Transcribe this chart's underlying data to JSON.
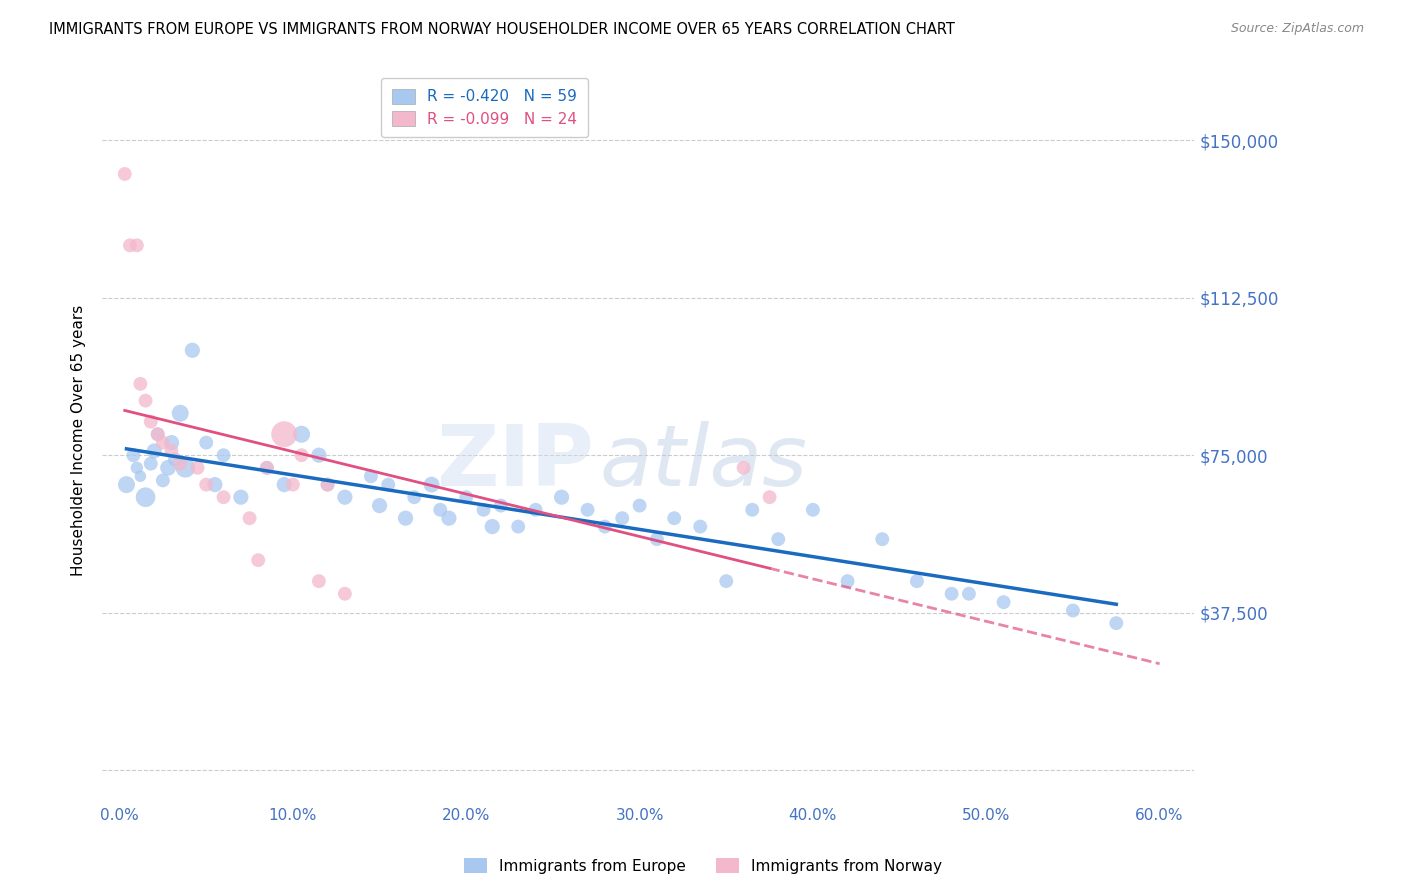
{
  "title": "IMMIGRANTS FROM EUROPE VS IMMIGRANTS FROM NORWAY HOUSEHOLDER INCOME OVER 65 YEARS CORRELATION CHART",
  "source": "Source: ZipAtlas.com",
  "ylabel": "Householder Income Over 65 years",
  "xlabel_ticks": [
    "0.0%",
    "10.0%",
    "20.0%",
    "30.0%",
    "40.0%",
    "50.0%",
    "60.0%"
  ],
  "xlabel_vals": [
    0.0,
    10.0,
    20.0,
    30.0,
    40.0,
    50.0,
    60.0
  ],
  "yticks_vals": [
    0,
    37500,
    75000,
    112500,
    150000
  ],
  "yticks_labels": [
    "",
    "$37,500",
    "$75,000",
    "$112,500",
    "$150,000"
  ],
  "xlim": [
    -1.0,
    62.0
  ],
  "ylim": [
    -8000,
    165000
  ],
  "watermark_zip": "ZIP",
  "watermark_atlas": "atlas",
  "legend_europe": "Immigrants from Europe",
  "legend_norway": "Immigrants from Norway",
  "R_europe": -0.42,
  "N_europe": 59,
  "R_norway": -0.099,
  "N_norway": 24,
  "color_europe": "#a8c8f0",
  "color_norway": "#f4b8cc",
  "color_europe_line": "#1a6bbf",
  "color_norway_line": "#e05080",
  "color_axis_labels": "#4472C4",
  "europe_x": [
    0.4,
    0.8,
    1.0,
    1.2,
    1.5,
    1.8,
    2.0,
    2.2,
    2.5,
    2.8,
    3.0,
    3.2,
    3.5,
    3.8,
    4.2,
    5.0,
    5.5,
    6.0,
    7.0,
    8.5,
    9.5,
    10.5,
    11.5,
    12.0,
    13.0,
    14.5,
    15.0,
    15.5,
    16.5,
    17.0,
    18.0,
    18.5,
    19.0,
    20.0,
    21.0,
    21.5,
    22.0,
    23.0,
    24.0,
    25.5,
    27.0,
    28.0,
    29.0,
    30.0,
    31.0,
    32.0,
    33.5,
    35.0,
    36.5,
    38.0,
    40.0,
    42.0,
    44.0,
    46.0,
    48.0,
    49.0,
    51.0,
    55.0,
    57.5
  ],
  "europe_y": [
    68000,
    75000,
    72000,
    70000,
    65000,
    73000,
    76000,
    80000,
    69000,
    72000,
    78000,
    74000,
    85000,
    72000,
    100000,
    78000,
    68000,
    75000,
    65000,
    72000,
    68000,
    80000,
    75000,
    68000,
    65000,
    70000,
    63000,
    68000,
    60000,
    65000,
    68000,
    62000,
    60000,
    65000,
    62000,
    58000,
    63000,
    58000,
    62000,
    65000,
    62000,
    58000,
    60000,
    63000,
    55000,
    60000,
    58000,
    45000,
    62000,
    55000,
    62000,
    45000,
    55000,
    45000,
    42000,
    42000,
    40000,
    38000,
    35000
  ],
  "europe_size": [
    150,
    100,
    80,
    70,
    200,
    100,
    120,
    100,
    100,
    130,
    120,
    100,
    150,
    200,
    120,
    100,
    120,
    100,
    120,
    100,
    120,
    150,
    120,
    100,
    120,
    100,
    120,
    100,
    120,
    100,
    130,
    100,
    120,
    100,
    100,
    120,
    100,
    100,
    100,
    120,
    100,
    100,
    100,
    100,
    100,
    100,
    100,
    100,
    100,
    100,
    100,
    100,
    100,
    100,
    100,
    100,
    100,
    100,
    100
  ],
  "norway_x": [
    0.3,
    0.6,
    1.0,
    1.2,
    1.5,
    1.8,
    2.2,
    2.5,
    3.0,
    3.5,
    4.5,
    5.0,
    6.0,
    7.5,
    8.0,
    8.5,
    9.5,
    10.0,
    10.5,
    11.5,
    12.0,
    13.0,
    36.0,
    37.5
  ],
  "norway_y": [
    142000,
    125000,
    125000,
    92000,
    88000,
    83000,
    80000,
    78000,
    76000,
    73000,
    72000,
    68000,
    65000,
    60000,
    50000,
    72000,
    80000,
    68000,
    75000,
    45000,
    68000,
    42000,
    72000,
    65000
  ],
  "norway_size": [
    100,
    100,
    100,
    100,
    100,
    100,
    100,
    100,
    100,
    100,
    100,
    100,
    100,
    100,
    100,
    100,
    350,
    100,
    100,
    100,
    100,
    100,
    100,
    100
  ]
}
